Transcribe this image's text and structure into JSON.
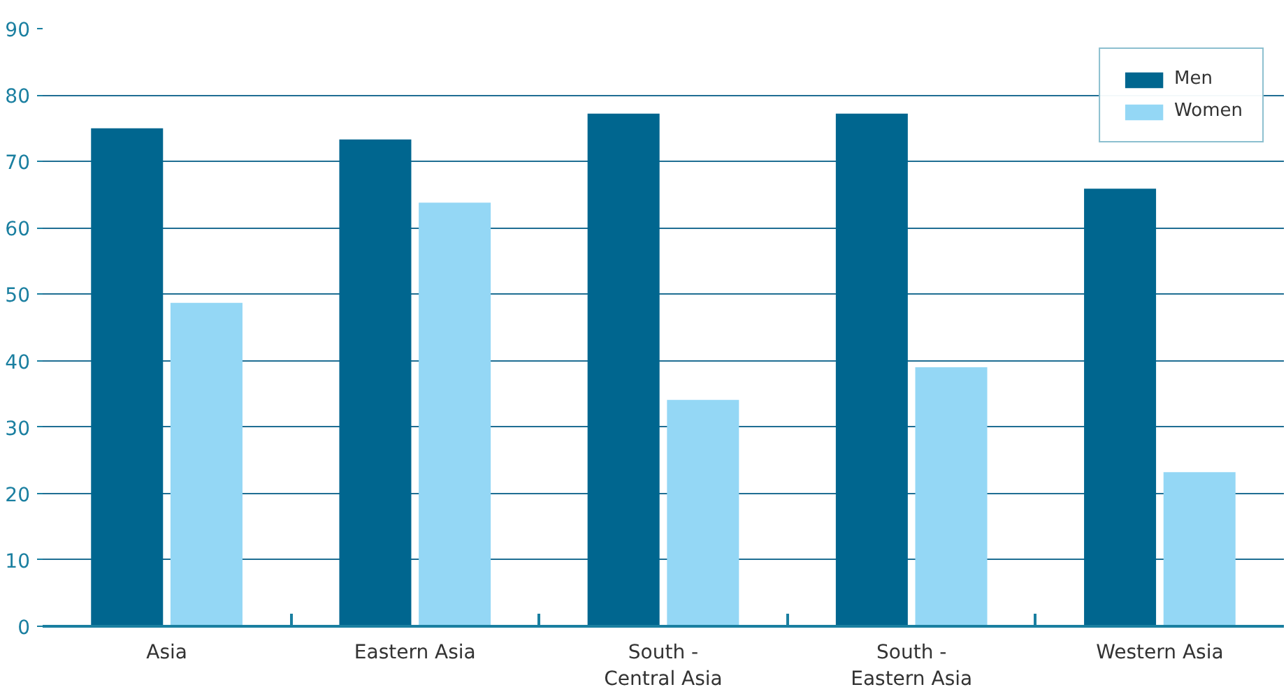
{
  "chart_data": {
    "type": "bar",
    "categories": [
      "Asia",
      "Eastern Asia",
      "South -\nCentral Asia",
      "South -\nEastern Asia",
      "Western Asia"
    ],
    "series": [
      {
        "name": "Men",
        "color": "#00668f",
        "values": [
          75.0,
          73.3,
          77.2,
          77.2,
          65.9
        ]
      },
      {
        "name": "Women",
        "color": "#94d7f5",
        "values": [
          48.7,
          63.8,
          34.1,
          39.0,
          23.2
        ]
      }
    ],
    "ylim": [
      0,
      90
    ],
    "yticks": [
      0,
      10,
      20,
      30,
      40,
      50,
      60,
      70,
      80,
      90
    ],
    "grid": "y",
    "legend": "top right"
  }
}
